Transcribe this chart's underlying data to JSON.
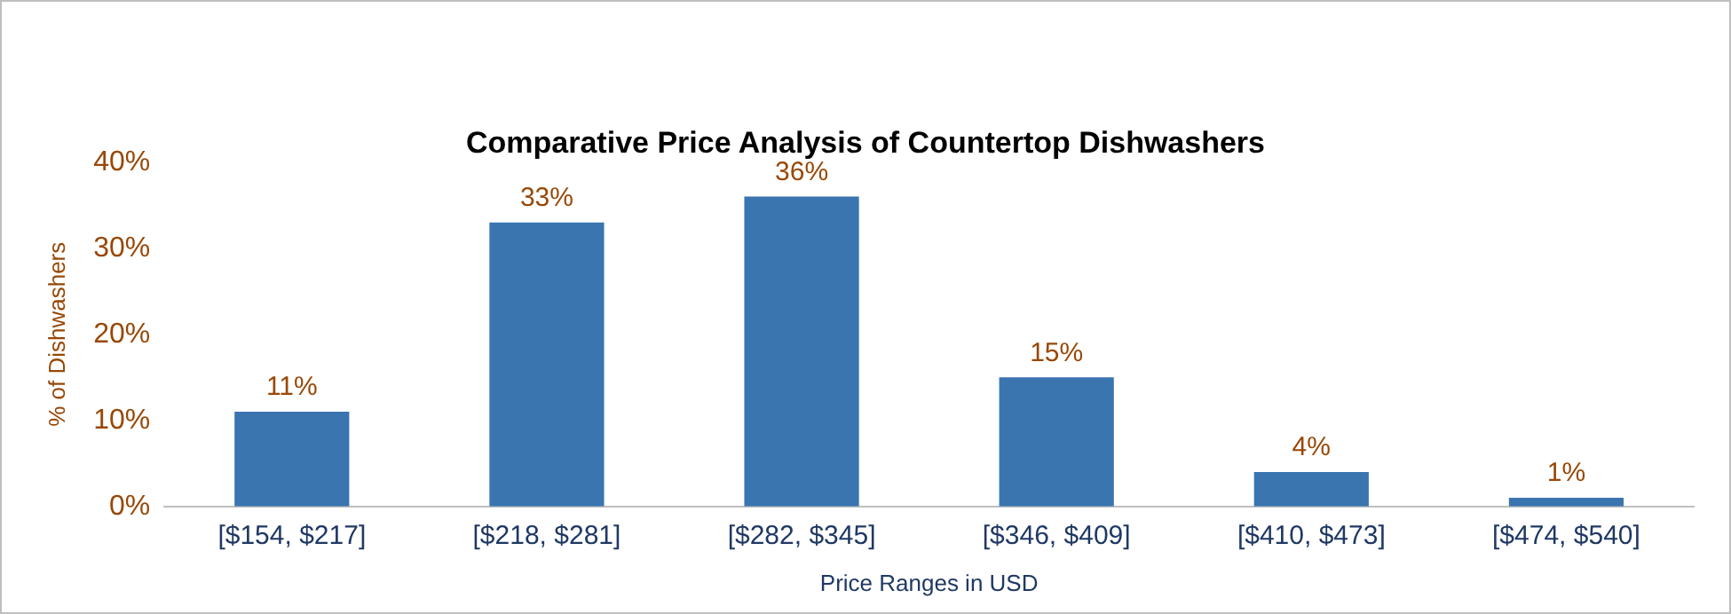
{
  "chart_data": {
    "type": "bar",
    "title": "Comparative Price Analysis of Countertop Dishwashers",
    "xlabel": "Price Ranges in USD",
    "ylabel": "% of Dishwashers",
    "categories": [
      "[$154, $217]",
      "[$218, $281]",
      "[$282, $345]",
      "[$346, $409]",
      "[$410, $473]",
      "[$474, $540]"
    ],
    "values": [
      11,
      33,
      36,
      15,
      4,
      1
    ],
    "value_labels": [
      "11%",
      "33%",
      "36%",
      "15%",
      "4%",
      "1%"
    ],
    "color": "#3a75b0",
    "ylim": [
      0,
      40
    ],
    "yticks": [
      {
        "value": 0,
        "label": "0%"
      },
      {
        "value": 10,
        "label": "10%"
      },
      {
        "value": 20,
        "label": "20%"
      },
      {
        "value": 30,
        "label": "30%"
      },
      {
        "value": 40,
        "label": "40%"
      }
    ],
    "grid": false,
    "legend": false
  }
}
